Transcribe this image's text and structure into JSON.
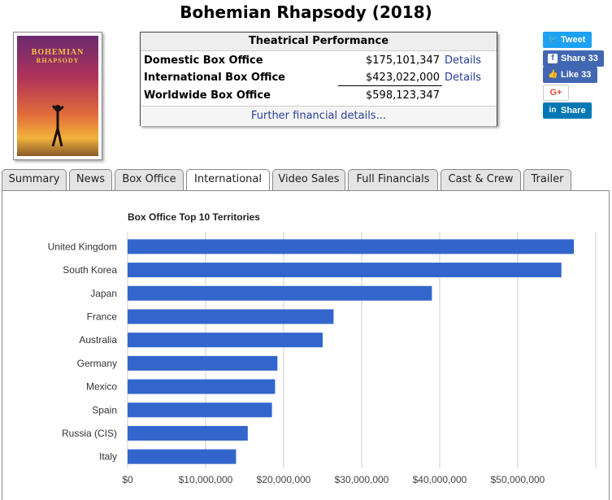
{
  "page": {
    "title": "Bohemian Rhapsody (2018)"
  },
  "poster": {
    "title_line1": "BOHEMIAN",
    "title_line2": "RHAPSODY"
  },
  "performance": {
    "header": "Theatrical Performance",
    "rows": [
      {
        "label": "Domestic Box Office",
        "value": "$175,101,347",
        "link": "Details"
      },
      {
        "label": "International Box Office",
        "value": "$423,022,000",
        "link": "Details"
      },
      {
        "label": "Worldwide Box Office",
        "value": "$598,123,347",
        "link": ""
      }
    ],
    "further": "Further financial details..."
  },
  "social": {
    "tweet": "Tweet",
    "share_fb": "Share 33",
    "like_fb": "Like 33",
    "gplus": "G+",
    "linkedin": "Share",
    "colors": {
      "twitter": "#1da1f2",
      "facebook": "#4267b2",
      "linkedin": "#0077b5"
    }
  },
  "tabs": [
    {
      "label": "Summary",
      "active": false
    },
    {
      "label": "News",
      "active": false
    },
    {
      "label": "Box Office",
      "active": false
    },
    {
      "label": "International",
      "active": true
    },
    {
      "label": "Video Sales",
      "active": false
    },
    {
      "label": "Full Financials",
      "active": false
    },
    {
      "label": "Cast & Crew",
      "active": false
    },
    {
      "label": "Trailer",
      "active": false
    }
  ],
  "chart_data": {
    "type": "bar",
    "orientation": "horizontal",
    "title": "Box Office Top 10 Territories",
    "categories": [
      "United Kingdom",
      "South Korea",
      "Japan",
      "France",
      "Australia",
      "Germany",
      "Mexico",
      "Spain",
      "Russia (CIS)",
      "Italy"
    ],
    "values": [
      57200000,
      55600000,
      39000000,
      26400000,
      25000000,
      19200000,
      18900000,
      18500000,
      15400000,
      13900000
    ],
    "x_ticks": [
      "$0",
      "$10,000,000",
      "$20,000,000",
      "$30,000,000",
      "$40,000,000",
      "$50,000,000"
    ],
    "xlim": [
      0,
      60000000
    ],
    "grid": true,
    "bar_color": "#3366cc"
  }
}
